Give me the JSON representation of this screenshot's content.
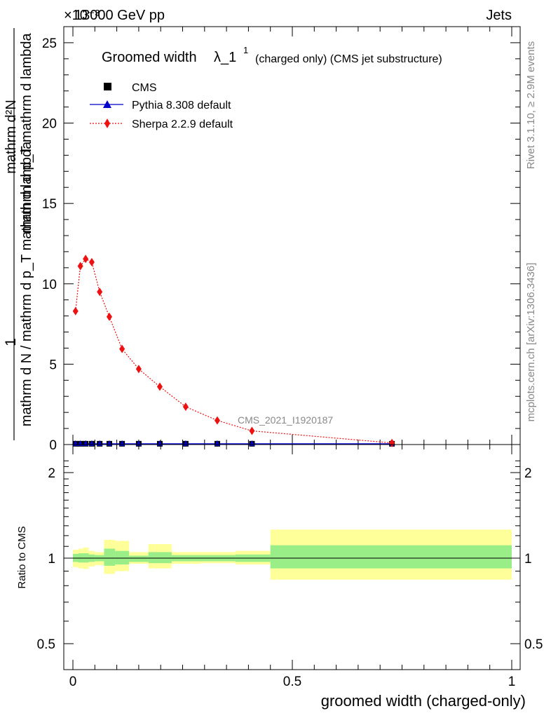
{
  "header": {
    "energy_label": "13000 GeV pp",
    "category_label": "Jets",
    "exponent_label": "×10⁻³"
  },
  "side": {
    "rivet_label": "Rivet 3.1.10, ≥ 2.9M events",
    "site_label": "mcplots.cern.ch [arXiv:1306.3436]"
  },
  "main_plot": {
    "title_main": "Groomed width",
    "title_lambda": "λ_1",
    "title_sup": "1",
    "title_extra": "(charged only) (CMS jet substructure)",
    "ylabel_top": "1",
    "ylabel_bottom": "mathrm d N / mathrm d p_T mathrm d lambda",
    "ylabel_numerator": "mathrm d²N",
    "ylabel_denominator": "mathrm d p_T mathrm d lambda",
    "analysis_label": "CMS_2021_I1920187",
    "yticks": [
      "0",
      "5",
      "10",
      "15",
      "20",
      "25"
    ]
  },
  "legend": [
    {
      "label": "CMS",
      "marker": "square",
      "color": "#000000"
    },
    {
      "label": "Pythia 8.308 default",
      "marker": "triangle",
      "color": "#0000cc"
    },
    {
      "label": "Sherpa 2.2.9 default",
      "marker": "diamond",
      "color": "#ee1111"
    }
  ],
  "ratio_plot": {
    "ylabel": "Ratio to CMS",
    "yticks": [
      "0.5",
      "1",
      "2"
    ]
  },
  "xaxis": {
    "label": "groomed width (charged-only)",
    "ticks": [
      "0",
      "0.5",
      "1"
    ]
  },
  "chart_data": {
    "type": "line",
    "title": "Groomed width λ_1^1 (charged only) (CMS jet substructure)",
    "xlabel": "groomed width (charged-only)",
    "ylabel": "1/(dN/dpT dλ) d²N/(dpT dλ)",
    "y_scale_factor": "1e-3",
    "xlim": [
      0,
      1
    ],
    "ylim_main": [
      0,
      26
    ],
    "ylim_ratio": [
      0.4,
      2.3
    ],
    "series": [
      {
        "name": "CMS",
        "x": [
          0.006,
          0.017,
          0.029,
          0.043,
          0.061,
          0.083,
          0.112,
          0.15,
          0.198,
          0.257,
          0.329,
          0.408,
          0.727
        ],
        "values": [
          0.05,
          0.05,
          0.05,
          0.05,
          0.05,
          0.05,
          0.05,
          0.05,
          0.05,
          0.05,
          0.05,
          0.05,
          0.05
        ]
      },
      {
        "name": "Pythia 8.308 default",
        "x": [
          0.006,
          0.017,
          0.029,
          0.043,
          0.061,
          0.083,
          0.112,
          0.15,
          0.198,
          0.257,
          0.329,
          0.408,
          0.727
        ],
        "values": [
          0.05,
          0.05,
          0.05,
          0.05,
          0.05,
          0.05,
          0.05,
          0.05,
          0.05,
          0.05,
          0.05,
          0.05,
          0.05
        ]
      },
      {
        "name": "Sherpa 2.2.9 default",
        "x": [
          0.006,
          0.017,
          0.029,
          0.043,
          0.061,
          0.083,
          0.112,
          0.15,
          0.198,
          0.257,
          0.329,
          0.408,
          0.727
        ],
        "values": [
          8.3,
          11.1,
          11.55,
          11.35,
          9.5,
          7.95,
          5.95,
          4.7,
          3.6,
          2.35,
          1.5,
          0.85,
          0.1
        ]
      }
    ],
    "ratio_bands": [
      {
        "x0": 0.0,
        "x1": 0.012,
        "stat": [
          0.97,
          1.035
        ],
        "total": [
          0.93,
          1.07
        ]
      },
      {
        "x0": 0.012,
        "x1": 0.023,
        "stat": [
          0.965,
          1.04
        ],
        "total": [
          0.92,
          1.08
        ]
      },
      {
        "x0": 0.023,
        "x1": 0.036,
        "stat": [
          0.965,
          1.04
        ],
        "total": [
          0.915,
          1.09
        ]
      },
      {
        "x0": 0.036,
        "x1": 0.05,
        "stat": [
          0.97,
          1.03
        ],
        "total": [
          0.935,
          1.06
        ]
      },
      {
        "x0": 0.05,
        "x1": 0.071,
        "stat": [
          0.975,
          1.025
        ],
        "total": [
          0.945,
          1.05
        ]
      },
      {
        "x0": 0.071,
        "x1": 0.096,
        "stat": [
          0.94,
          1.08
        ],
        "total": [
          0.88,
          1.16
        ]
      },
      {
        "x0": 0.096,
        "x1": 0.128,
        "stat": [
          0.95,
          1.06
        ],
        "total": [
          0.9,
          1.15
        ]
      },
      {
        "x0": 0.128,
        "x1": 0.172,
        "stat": [
          0.97,
          1.02
        ],
        "total": [
          0.955,
          1.05
        ]
      },
      {
        "x0": 0.172,
        "x1": 0.225,
        "stat": [
          0.96,
          1.05
        ],
        "total": [
          0.92,
          1.12
        ]
      },
      {
        "x0": 0.225,
        "x1": 0.29,
        "stat": [
          0.975,
          1.025
        ],
        "total": [
          0.955,
          1.05
        ]
      },
      {
        "x0": 0.29,
        "x1": 0.37,
        "stat": [
          0.975,
          1.025
        ],
        "total": [
          0.96,
          1.05
        ]
      },
      {
        "x0": 0.37,
        "x1": 0.45,
        "stat": [
          0.97,
          1.03
        ],
        "total": [
          0.95,
          1.06
        ]
      },
      {
        "x0": 0.45,
        "x1": 1.0,
        "stat": [
          0.92,
          1.11
        ],
        "total": [
          0.84,
          1.26
        ]
      }
    ]
  }
}
